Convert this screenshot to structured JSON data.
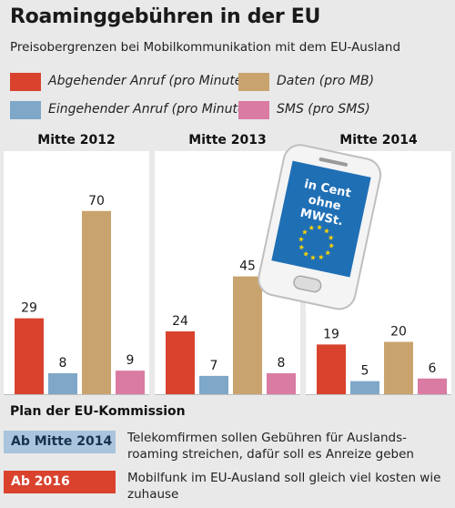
{
  "title": "Roaminggebühren in der EU",
  "subtitle": "Preisobergrenzen bei Mobilkommunikation mit dem EU-Ausland",
  "colors": {
    "outgoing": "#d9432e",
    "incoming": "#7ea7c8",
    "data": "#c9a36e",
    "sms": "#d97ba3",
    "badge_2014": "#a9c4dc",
    "badge_2016": "#d9432e"
  },
  "legend": [
    {
      "label": "Abgehender Anruf (pro Minute)",
      "color": "#d9432e"
    },
    {
      "label": "Daten (pro MB)",
      "color": "#c9a36e"
    },
    {
      "label": "Eingehender Anruf (pro Minute)",
      "color": "#7ea7c8"
    },
    {
      "label": "SMS (pro SMS)",
      "color": "#d97ba3"
    }
  ],
  "chart_data": {
    "type": "bar",
    "unit_note": "in Cent ohne MWSt.",
    "series_order": [
      "Abgehender Anruf (pro Minute)",
      "Eingehender Anruf (pro Minute)",
      "Daten (pro MB)",
      "SMS (pro SMS)"
    ],
    "panels": [
      {
        "title": "Mitte 2012",
        "values": [
          29,
          8,
          70,
          9
        ]
      },
      {
        "title": "Mitte 2013",
        "values": [
          24,
          7,
          45,
          8
        ]
      },
      {
        "title": "Mitte 2014",
        "values": [
          19,
          5,
          20,
          6
        ]
      }
    ],
    "ylim": [
      0,
      80
    ]
  },
  "phone": {
    "screen_text_1": "in Cent",
    "screen_text_2": "ohne",
    "screen_text_3": "MWSt."
  },
  "plan": {
    "title": "Plan der EU-Kommission",
    "items": [
      {
        "badge": "Ab Mitte 2014",
        "text": "Telekomfirmen sollen Gebühren für Auslands-roaming streichen, dafür soll es Anreize geben"
      },
      {
        "badge": "Ab 2016",
        "text": "Mobilfunk im EU-Ausland soll gleich viel kosten wie zuhause"
      }
    ]
  }
}
